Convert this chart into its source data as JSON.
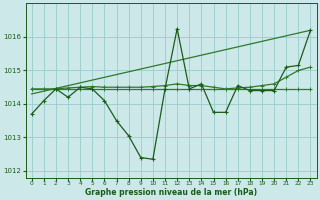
{
  "xlabel": "Graphe pression niveau de la mer (hPa)",
  "background_color": "#cce8e8",
  "grid_color": "#99cccc",
  "line_color_dark": "#1a5c1a",
  "line_color_mid": "#2d7a2d",
  "xlim": [
    -0.5,
    23.5
  ],
  "ylim": [
    1011.8,
    1017.0
  ],
  "yticks": [
    1012,
    1013,
    1014,
    1015,
    1016
  ],
  "xticks": [
    0,
    1,
    2,
    3,
    4,
    5,
    6,
    7,
    8,
    9,
    10,
    11,
    12,
    13,
    14,
    15,
    16,
    17,
    18,
    19,
    20,
    21,
    22,
    23
  ],
  "series_jagged_x": [
    0,
    1,
    2,
    3,
    4,
    5,
    6,
    7,
    8,
    9,
    10,
    11,
    12,
    13,
    14,
    15,
    16,
    17,
    18,
    19,
    20,
    21,
    22,
    23
  ],
  "series_jagged_y": [
    1013.7,
    1014.1,
    1014.45,
    1014.2,
    1014.5,
    1014.45,
    1014.1,
    1013.5,
    1013.05,
    1012.4,
    1012.35,
    1014.45,
    1016.25,
    1014.45,
    1014.6,
    1013.75,
    1013.75,
    1014.55,
    1014.4,
    1014.4,
    1014.4,
    1015.1,
    1015.15,
    1016.2
  ],
  "series_flat_x": [
    0,
    1,
    2,
    3,
    4,
    5,
    6,
    7,
    8,
    9,
    10,
    11,
    12,
    13,
    14,
    15,
    16,
    17,
    18,
    19,
    20,
    21,
    22,
    23
  ],
  "series_flat_y": [
    1014.45,
    1014.45,
    1014.45,
    1014.45,
    1014.45,
    1014.45,
    1014.45,
    1014.45,
    1014.45,
    1014.45,
    1014.45,
    1014.45,
    1014.45,
    1014.45,
    1014.45,
    1014.45,
    1014.45,
    1014.45,
    1014.45,
    1014.45,
    1014.45,
    1014.45,
    1014.45,
    1014.45
  ],
  "series_trend_x": [
    0,
    23
  ],
  "series_trend_y": [
    1014.3,
    1016.2
  ],
  "series_smooth_x": [
    0,
    1,
    2,
    3,
    4,
    5,
    6,
    7,
    8,
    9,
    10,
    11,
    12,
    13,
    14,
    15,
    16,
    17,
    18,
    19,
    20,
    21,
    22,
    23
  ],
  "series_smooth_y": [
    1014.45,
    1014.45,
    1014.45,
    1014.48,
    1014.5,
    1014.52,
    1014.5,
    1014.5,
    1014.5,
    1014.5,
    1014.52,
    1014.55,
    1014.6,
    1014.55,
    1014.55,
    1014.5,
    1014.45,
    1014.48,
    1014.5,
    1014.55,
    1014.6,
    1014.8,
    1015.0,
    1015.1
  ],
  "lw": 0.9,
  "ms": 3.5
}
